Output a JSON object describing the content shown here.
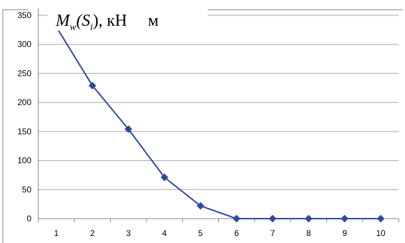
{
  "chart_data": {
    "type": "line",
    "title": {
      "prefix": "M",
      "sub_w": "w",
      "paren_open": "(S",
      "sub_i": "i",
      "paren_close": ")",
      "unit": ", кН",
      "unit2": "м"
    },
    "xlabel": "",
    "ylabel": "",
    "categories": [
      "1",
      "2",
      "3",
      "4",
      "5",
      "6",
      "7",
      "8",
      "9",
      "10"
    ],
    "series": [
      {
        "values": [
          330,
          229,
          154,
          71,
          22,
          0,
          0,
          0,
          0,
          0
        ]
      }
    ],
    "ylim": [
      0,
      350
    ],
    "yticks": [
      "0",
      "50",
      "100",
      "150",
      "200",
      "250",
      "300",
      "350"
    ],
    "grid": "horizontal",
    "legend": "none",
    "colors": {
      "series": "#2E4A9E",
      "grid": "#A6A6A6",
      "axis": "#808080",
      "border": "#808080"
    }
  }
}
